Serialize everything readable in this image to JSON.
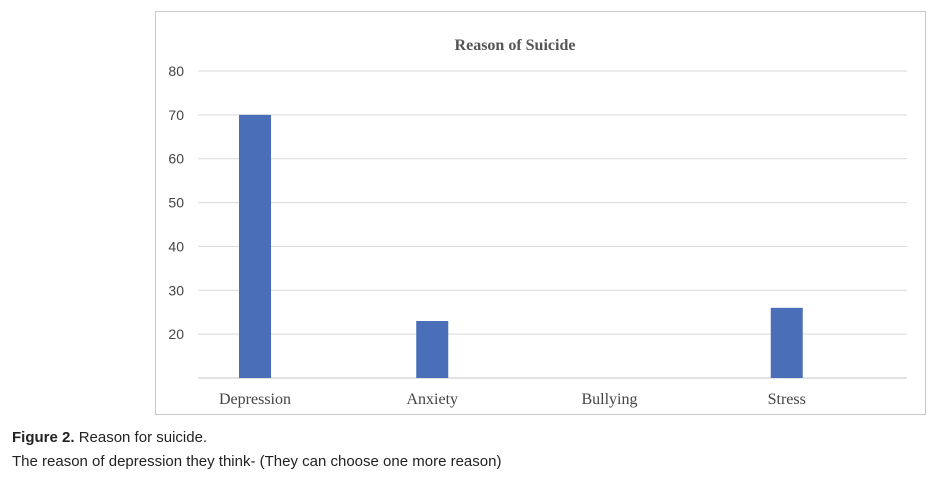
{
  "caption": {
    "figure_label": "Figure 2.",
    "figure_text": "Reason for suicide.",
    "note": "The reason of depression they think- (They can choose one more reason)"
  },
  "chart_data": {
    "type": "bar",
    "title": "Reason of Suicide",
    "categories": [
      "Depression",
      "Anxiety",
      "Bullying",
      "Stress"
    ],
    "values": [
      70,
      23,
      10,
      26
    ],
    "yticks": [
      20,
      30,
      40,
      50,
      60,
      70,
      80
    ],
    "ylim": [
      10,
      80
    ],
    "grid": true,
    "bar_color": "#4a6fb8",
    "gridline_color": "#d9d9d9",
    "xlabel": "",
    "ylabel": ""
  }
}
